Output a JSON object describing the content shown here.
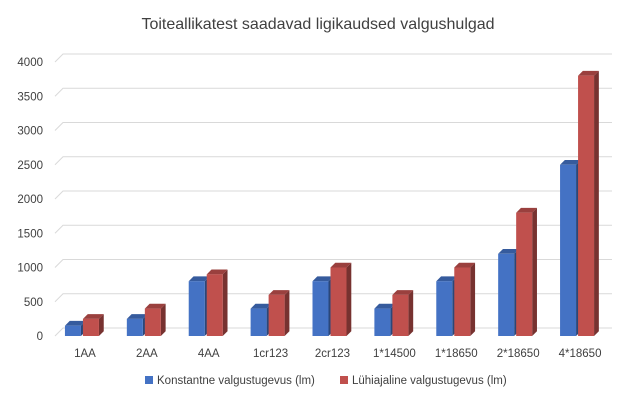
{
  "chart_data": {
    "type": "bar",
    "title": "Toiteallikatest saadavad ligikaudsed valgushulgad",
    "xlabel": "",
    "ylabel": "",
    "categories": [
      "1AA",
      "2AA",
      "4AA",
      "1cr123",
      "2cr123",
      "1*14500",
      "1*18650",
      "2*18650",
      "4*18650"
    ],
    "series": [
      {
        "name": "Konstantne valgustugevus (lm)",
        "color": "#4472C4",
        "values": [
          150,
          250,
          800,
          400,
          800,
          400,
          800,
          1200,
          2500
        ]
      },
      {
        "name": "Lühiajaline valgustugevus (lm)",
        "color": "#C0504D",
        "values": [
          250,
          400,
          900,
          600,
          1000,
          600,
          1000,
          1800,
          3800
        ]
      }
    ],
    "ylim": [
      0,
      4000
    ],
    "yticks": [
      "0",
      "500",
      "1000",
      "1500",
      "2000",
      "2500",
      "3000",
      "3500",
      "4000"
    ],
    "grid": true,
    "legend_position": "bottom",
    "style": "3d-clustered-column"
  }
}
